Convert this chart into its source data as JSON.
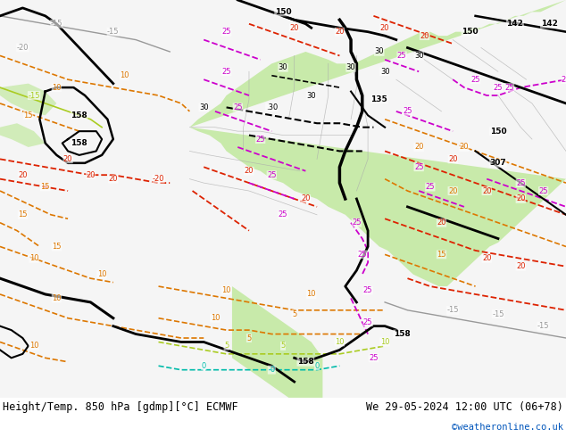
{
  "title_left": "Height/Temp. 850 hPa [gdmp][°C] ECMWF",
  "title_right": "We 29-05-2024 12:00 UTC (06+78)",
  "watermark": "©weatheronline.co.uk",
  "bg_color": "#ffffff",
  "map_bg_white": "#f5f5f5",
  "map_bg_green": "#c8eaaa",
  "figsize": [
    6.34,
    4.9
  ],
  "dpi": 100,
  "label_color": "#000000",
  "watermark_color": "#0055bb",
  "footer_fontsize": 8.5,
  "watermark_fontsize": 7.5,
  "green_fill": "#c8eaaa",
  "light_green_fill": "#e0f0c8",
  "colors": {
    "black": "#000000",
    "magenta": "#cc00cc",
    "red": "#dd2200",
    "orange": "#dd7700",
    "dark_orange": "#cc5500",
    "yellow_green": "#aacc22",
    "cyan_green": "#00bbaa",
    "gray": "#999999",
    "light_gray": "#bbbbbb",
    "border_gray": "#aaaaaa"
  }
}
